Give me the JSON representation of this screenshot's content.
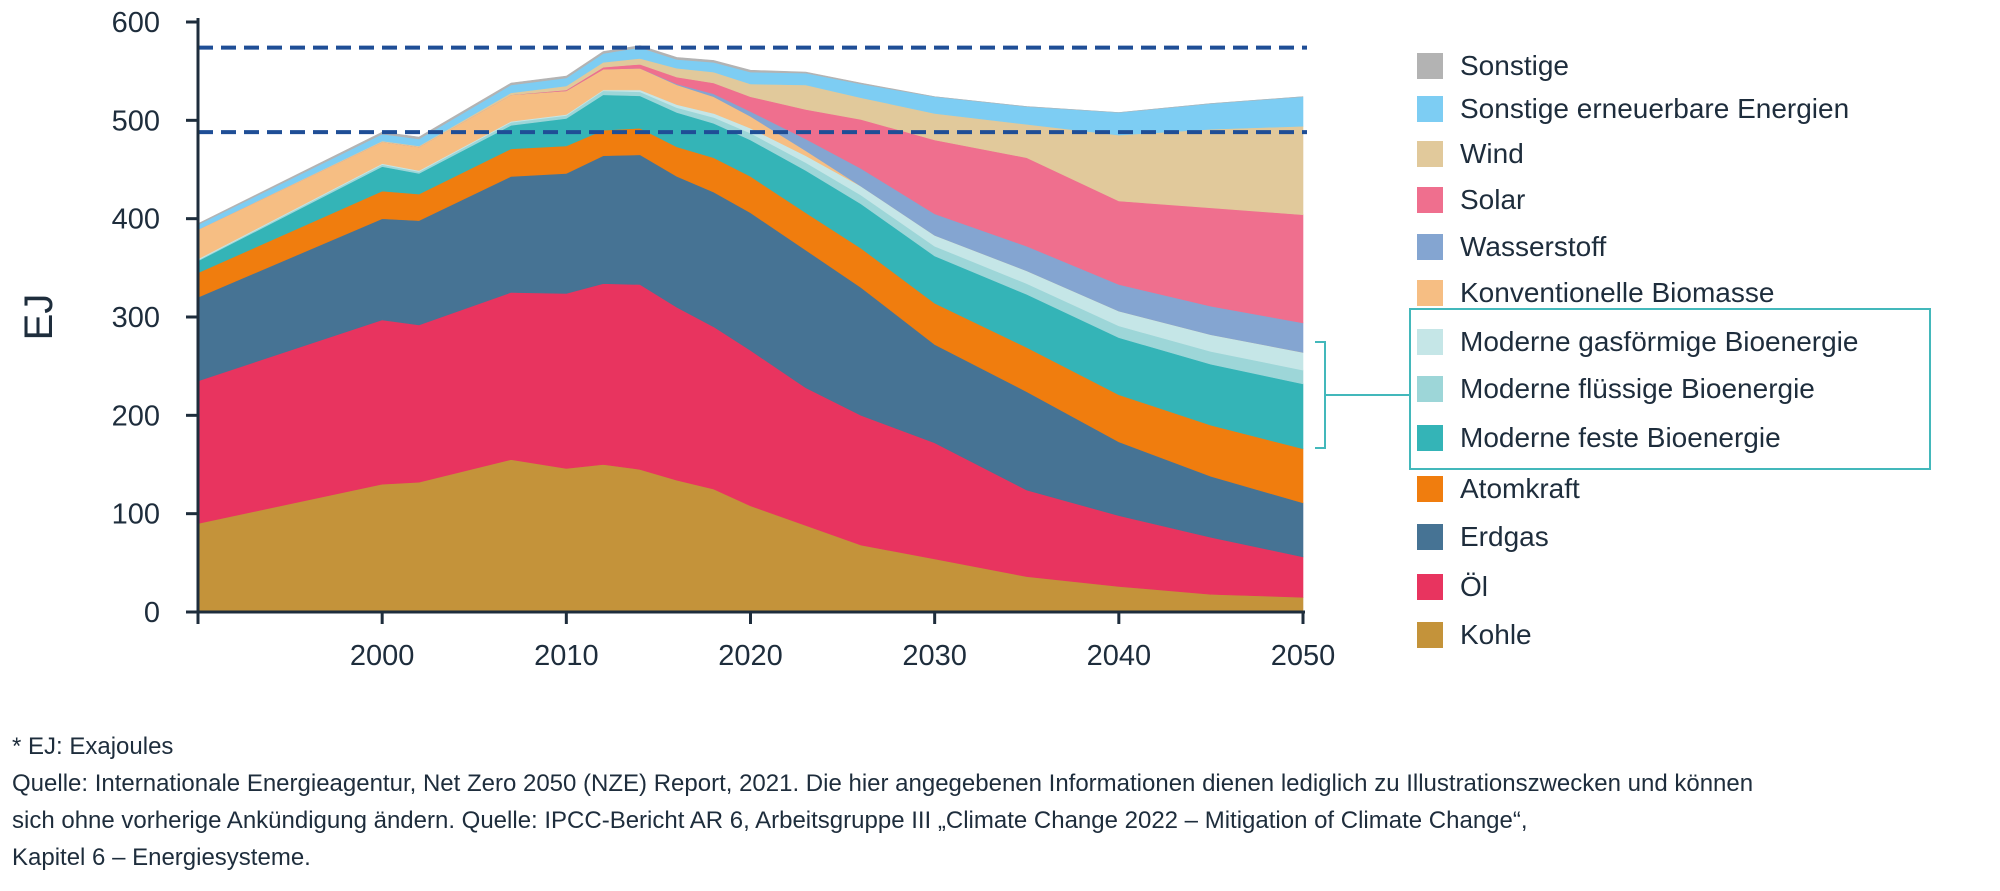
{
  "chart_data": {
    "type": "area",
    "stacked": true,
    "ylabel": "EJ",
    "xlabel": "",
    "xlim": [
      1990,
      2050
    ],
    "ylim": [
      0,
      600
    ],
    "x_ticks": [
      2000,
      2010,
      2020,
      2030,
      2040,
      2050
    ],
    "y_ticks": [
      0,
      100,
      200,
      300,
      400,
      500,
      600
    ],
    "reference_lines": [
      574,
      488
    ],
    "x": [
      1990,
      2000,
      2002,
      2007,
      2010,
      2012,
      2014,
      2016,
      2018,
      2020,
      2023,
      2026,
      2030,
      2035,
      2040,
      2045,
      2050
    ],
    "series": [
      {
        "name": "Kohle",
        "color": "#c4933a",
        "values": [
          90,
          130,
          132,
          155,
          146,
          150,
          145,
          134,
          125,
          108,
          88,
          68,
          54,
          36,
          26,
          18,
          15
        ]
      },
      {
        "name": "Öl",
        "color": "#e8345f",
        "values": [
          145,
          167,
          160,
          170,
          178,
          184,
          188,
          176,
          165,
          158,
          140,
          132,
          118,
          88,
          72,
          58,
          41
        ]
      },
      {
        "name": "Erdgas",
        "color": "#467394",
        "values": [
          85,
          103,
          106,
          118,
          122,
          130,
          132,
          133,
          137,
          140,
          140,
          130,
          100,
          100,
          75,
          62,
          55
        ]
      },
      {
        "name": "Atomkraft",
        "color": "#f07d0e",
        "values": [
          25,
          28,
          27,
          28,
          28,
          26,
          27,
          30,
          35,
          37,
          38,
          40,
          42,
          45,
          48,
          52,
          55
        ]
      },
      {
        "name": "Moderne feste Bioenergie",
        "color": "#34b4b7",
        "values": [
          12,
          25,
          21,
          24,
          28,
          36,
          33,
          35,
          35,
          37,
          43,
          45,
          48,
          54,
          58,
          62,
          66
        ]
      },
      {
        "name": "Moderne flüssige Bioenergie",
        "color": "#9dd6d8",
        "values": [
          1,
          2,
          2,
          3,
          3,
          4,
          4,
          5,
          6,
          7,
          8,
          9,
          10,
          11,
          12,
          13,
          14
        ]
      },
      {
        "name": "Moderne gasförmige Bioenergie",
        "color": "#c5e6e7",
        "values": [
          1,
          1,
          1,
          1,
          1,
          1,
          2,
          3,
          4,
          5,
          7,
          9,
          11,
          13,
          15,
          17,
          18
        ]
      },
      {
        "name": "Konventionelle Biomasse",
        "color": "#f6be83",
        "values": [
          30,
          22,
          24,
          27,
          24,
          21,
          22,
          20,
          17,
          12,
          5,
          0,
          0,
          0,
          0,
          0,
          0
        ]
      },
      {
        "name": "Wasserstoff",
        "color": "#84a5d1",
        "values": [
          0,
          0,
          0,
          0,
          0,
          0,
          0,
          1,
          3,
          5,
          12,
          18,
          22,
          25,
          27,
          29,
          30
        ]
      },
      {
        "name": "Solar",
        "color": "#ef6f8e",
        "values": [
          0,
          0,
          0,
          0,
          1,
          2,
          4,
          7,
          11,
          15,
          30,
          50,
          75,
          90,
          85,
          100,
          110
        ]
      },
      {
        "name": "Wind",
        "color": "#e1c99b",
        "values": [
          0,
          1,
          1,
          2,
          4,
          5,
          6,
          9,
          11,
          13,
          25,
          22,
          27,
          34,
          67,
          80,
          90
        ]
      },
      {
        "name": "Sonstige erneuerbare Energien",
        "color": "#7dcdf3",
        "values": [
          5,
          7,
          7,
          8,
          8,
          9,
          11,
          9,
          10,
          12,
          12,
          14,
          17,
          18,
          23,
          26,
          30
        ]
      },
      {
        "name": "Sonstige",
        "color": "#b3b3b3",
        "values": [
          1,
          2,
          2,
          2,
          2,
          2,
          2,
          2,
          2,
          2,
          1,
          1,
          0,
          0,
          0,
          0,
          0
        ]
      }
    ],
    "legend_order": [
      "Sonstige",
      "Sonstige erneuerbare Energien",
      "Wind",
      "Solar",
      "Wasserstoff",
      "Konventionelle Biomasse",
      "Moderne gasförmige Bioenergie",
      "Moderne flüssige Bioenergie",
      "Moderne feste Bioenergie",
      "Atomkraft",
      "Erdgas",
      "Öl",
      "Kohle"
    ],
    "legend_group": [
      "Moderne gasförmige Bioenergie",
      "Moderne flüssige Bioenergie",
      "Moderne feste Bioenergie"
    ],
    "legend_position": "right",
    "grid": false
  },
  "notes": {
    "footnote": "* EJ: Exajoules",
    "source_line1": "Quelle: Internationale Energieagentur, Net Zero 2050 (NZE) Report, 2021. Die hier angegebenen Informationen dienen lediglich zu Illustrationszwecken und können",
    "source_line2": "sich ohne vorherige Ankündigung ändern. Quelle: IPCC-Bericht AR 6, Arbeitsgruppe III „Climate Change 2022 – Mitigation of Climate Change“,",
    "source_line3": "Kapitel 6 – Energiesysteme."
  },
  "colors": {
    "axis": "#1e2d3c",
    "reference_line": "#1f4e96",
    "group_bracket": "#43b8bb"
  }
}
